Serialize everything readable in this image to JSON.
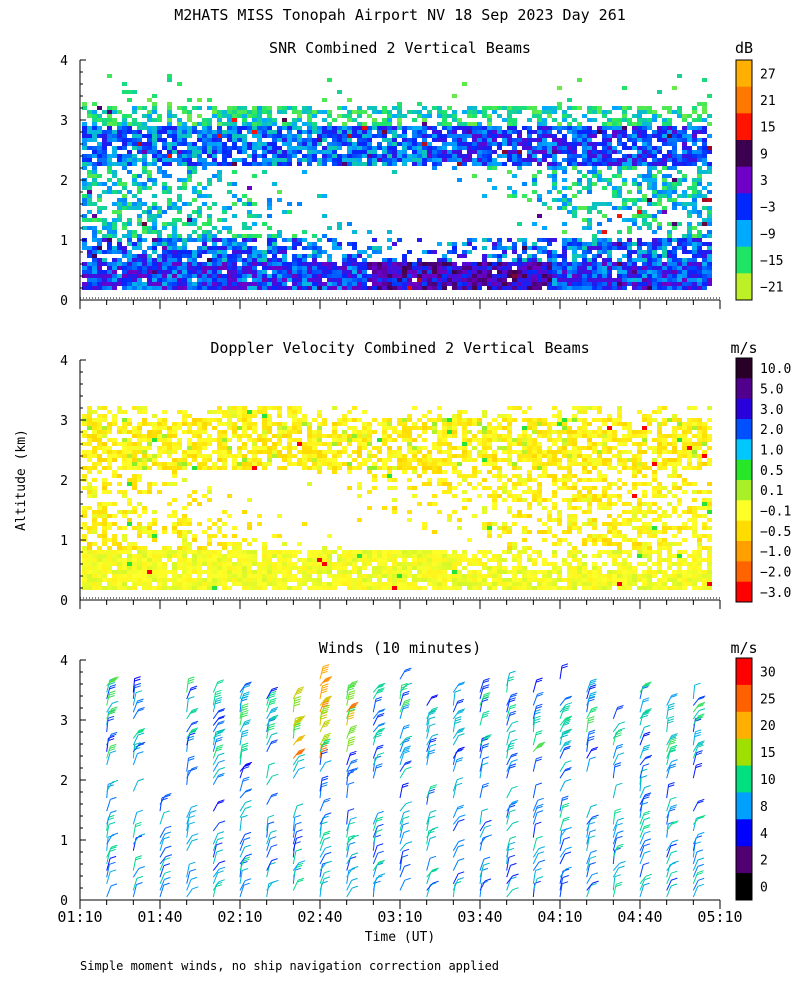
{
  "figure": {
    "title": "M2HATS MISS Tonopah Airport NV  18 Sep 2023 Day 261",
    "ylabel": "Altitude (km)",
    "xlabel": "Time (UT)",
    "footnote": "Simple moment winds, no ship navigation correction applied",
    "time_ticks": [
      "01:10",
      "01:40",
      "02:10",
      "02:40",
      "03:10",
      "03:40",
      "04:10",
      "04:40",
      "05:10"
    ],
    "time_range_min": [
      70,
      310
    ],
    "altitude_ticks": [
      "0",
      "1",
      "2",
      "3",
      "4"
    ],
    "altitude_range_km": [
      0,
      4
    ]
  },
  "chart_data": [
    {
      "type": "heatmap",
      "title": "SNR Combined 2 Vertical Beams",
      "units": "dB",
      "xlabel": "Time (UT)",
      "ylabel": "Altitude (km)",
      "ylim": [
        0,
        4
      ],
      "colorbar": {
        "labels": [
          "27",
          "21",
          "15",
          "9",
          "3",
          "−3",
          "−9",
          "−15",
          "−21"
        ],
        "colors": [
          "#ffb000",
          "#ff7800",
          "#ff1400",
          "#3c0050",
          "#6e00c8",
          "#0028ff",
          "#00aaff",
          "#1ee664",
          "#bef028"
        ]
      },
      "data_summary": "Echo between ~0.15 and ~3.3 km; strongest SNR (-9 to 3 dB) below 0.6 km and near 2.5-2.8 km; sparse returns above 3.3 km"
    },
    {
      "type": "heatmap",
      "title": "Doppler Velocity Combined 2 Vertical Beams",
      "units": "m/s",
      "xlabel": "Time (UT)",
      "ylabel": "Altitude (km)",
      "ylim": [
        0,
        4
      ],
      "colorbar": {
        "labels": [
          "10.0",
          "5.0",
          "3.0",
          "2.0",
          "1.0",
          "0.5",
          "0.1",
          "−0.1",
          "−0.5",
          "−1.0",
          "−2.0",
          "−3.0"
        ],
        "colors": [
          "#280028",
          "#50008c",
          "#2800dc",
          "#0050ff",
          "#00c8ff",
          "#28e628",
          "#aaf028",
          "#ffff28",
          "#ffdc00",
          "#ffa000",
          "#ff6400",
          "#ff0000"
        ]
      },
      "data_summary": "Mostly weak downward motion (-0.1 to -1.0 m/s); yellow band below 0.8 km, orange patches 2.2-3.0 km"
    },
    {
      "type": "scatter",
      "title": "Winds (10 minutes)",
      "units": "m/s",
      "xlabel": "Time (UT)",
      "ylabel": "Altitude (km)",
      "ylim": [
        0,
        4
      ],
      "colorbar": {
        "labels": [
          "30",
          "25",
          "20",
          "15",
          "10",
          "8",
          "4",
          "2",
          "0"
        ],
        "colors": [
          "#ff0000",
          "#ff6000",
          "#ffb000",
          "#a0e000",
          "#00e080",
          "#00a0ff",
          "#0000ff",
          "#500070",
          "#000000"
        ]
      },
      "data_summary": "Wind barbs every 10 min; mostly 4-8 m/s below 2 km, 10-20 m/s near 3 km after 03:40, up to ~30 m/s near 02:40-02:50 at 3 km"
    }
  ]
}
